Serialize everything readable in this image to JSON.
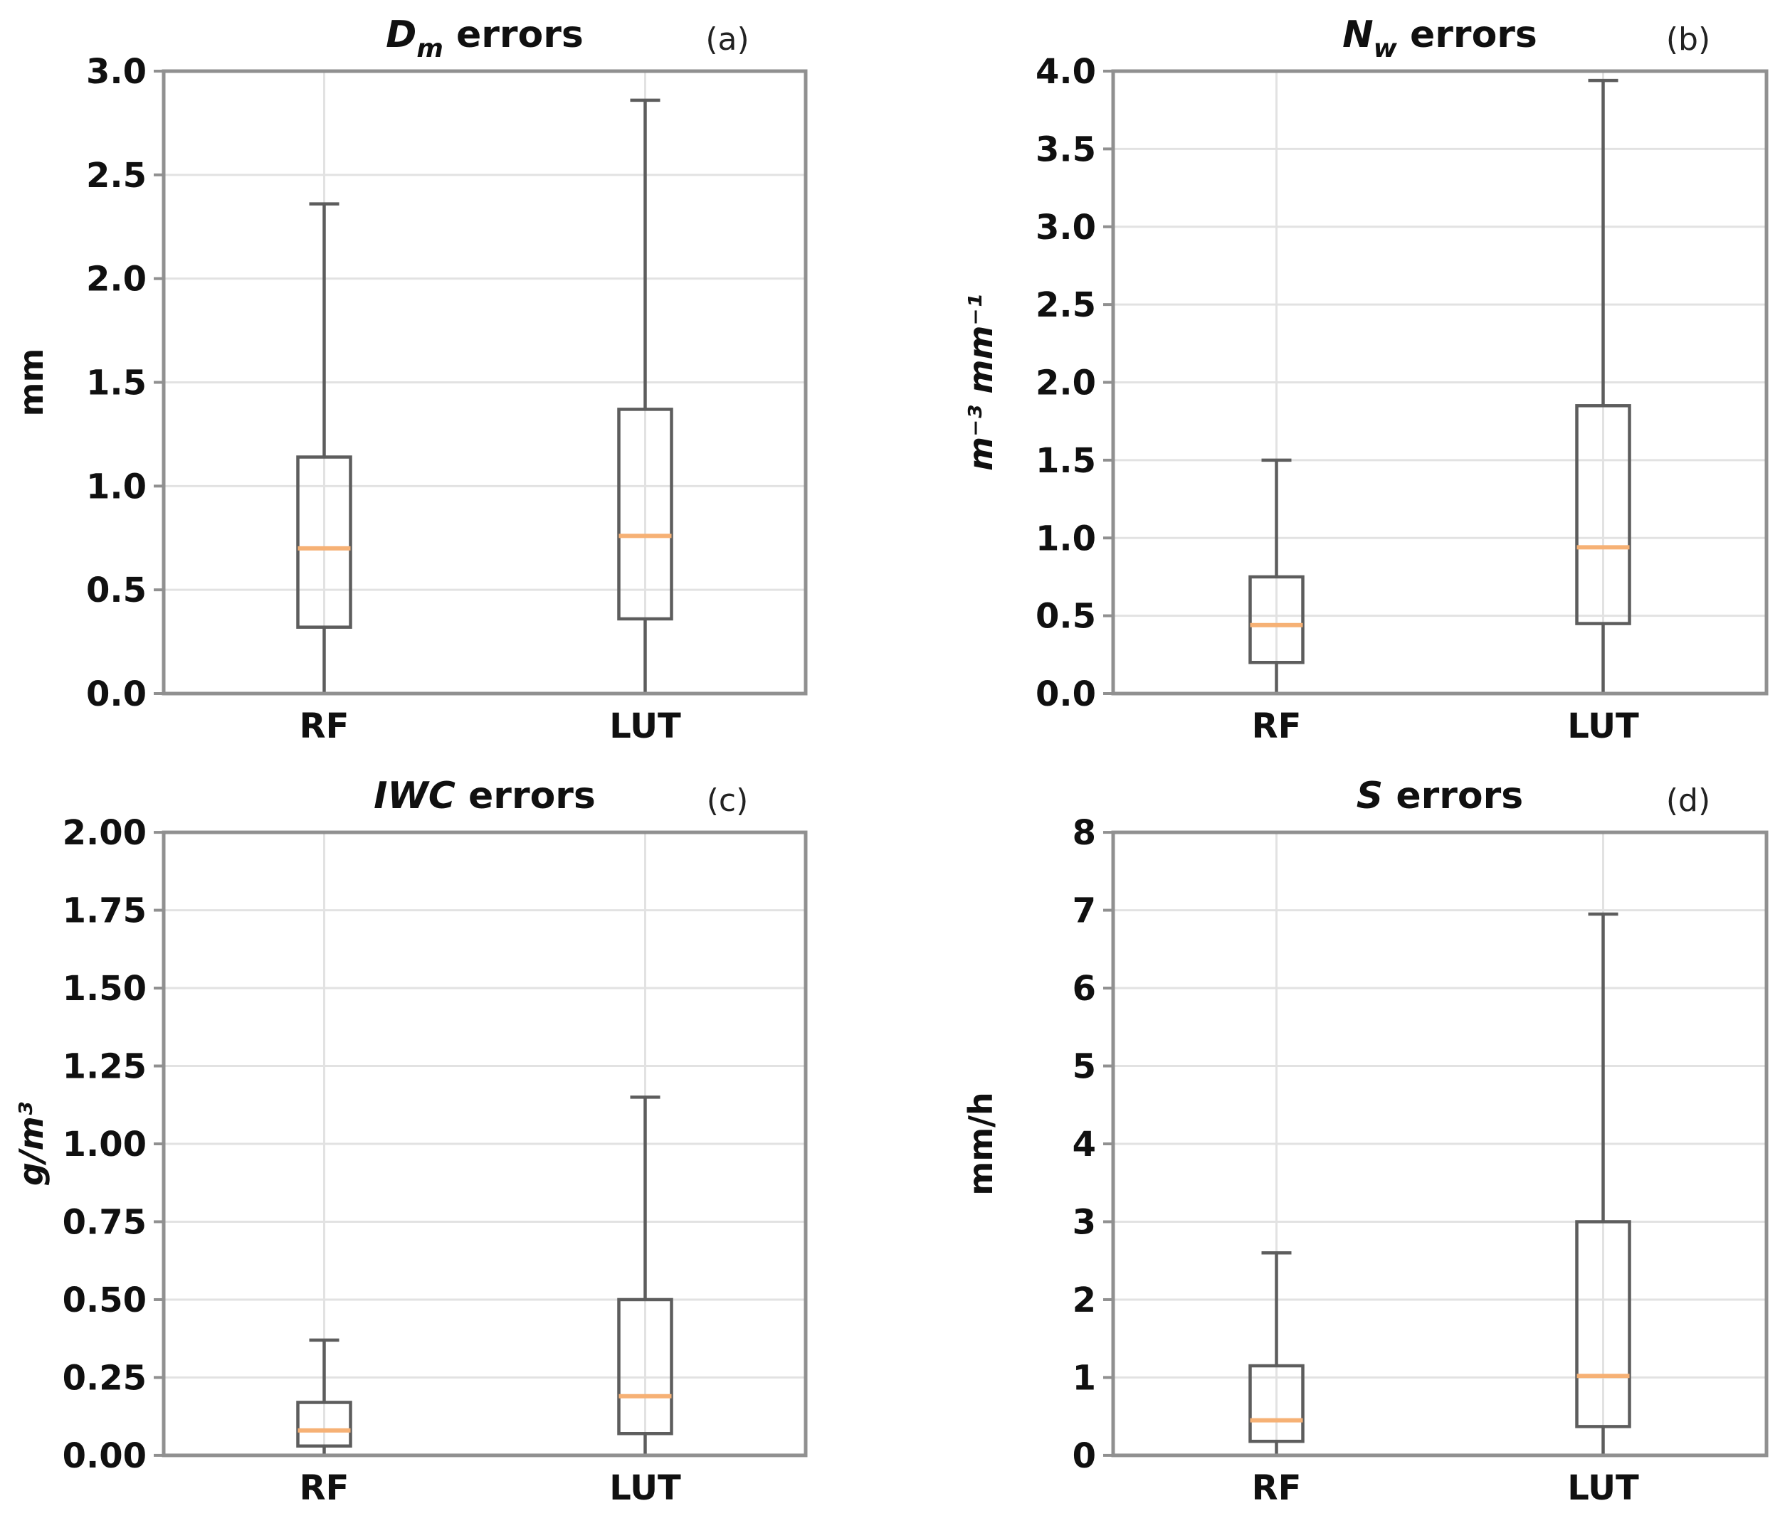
{
  "figure": {
    "background": "#ffffff",
    "colors": {
      "box_line": "#5d5d5d",
      "whisker_line": "#5d5d5d",
      "median_line": "#f6b175",
      "grid_line": "#e2e2e2",
      "spine": "#909090",
      "text": "#101010",
      "panel_label_text": "#222222"
    }
  },
  "chart_data": [
    {
      "type": "box",
      "panel_label": "(a)",
      "title": {
        "variable": "D",
        "subscript": "m",
        "rest": " errors"
      },
      "ylabel": "mm",
      "ylabel_italic": false,
      "ylim": [
        0.0,
        3.0
      ],
      "ytick_labels": [
        "0.0",
        "0.5",
        "1.0",
        "1.5",
        "2.0",
        "2.5",
        "3.0"
      ],
      "categories": [
        "RF",
        "LUT"
      ],
      "grid": true,
      "series": [
        {
          "name": "RF",
          "whislo": 0.0,
          "q1": 0.32,
          "med": 0.7,
          "q3": 1.14,
          "whishi": 2.36
        },
        {
          "name": "LUT",
          "whislo": 0.0,
          "q1": 0.36,
          "med": 0.76,
          "q3": 1.37,
          "whishi": 2.86
        }
      ]
    },
    {
      "type": "box",
      "panel_label": "(b)",
      "title": {
        "variable": "N",
        "subscript": "w",
        "rest": " errors"
      },
      "ylabel": "m⁻³ mm⁻¹",
      "ylabel_italic": true,
      "ylim": [
        0.0,
        4.0
      ],
      "ytick_labels": [
        "0.0",
        "0.5",
        "1.0",
        "1.5",
        "2.0",
        "2.5",
        "3.0",
        "3.5",
        "4.0"
      ],
      "categories": [
        "RF",
        "LUT"
      ],
      "grid": true,
      "series": [
        {
          "name": "RF",
          "whislo": 0.0,
          "q1": 0.2,
          "med": 0.44,
          "q3": 0.75,
          "whishi": 1.5
        },
        {
          "name": "LUT",
          "whislo": 0.0,
          "q1": 0.45,
          "med": 0.94,
          "q3": 1.85,
          "whishi": 3.94
        }
      ]
    },
    {
      "type": "box",
      "panel_label": "(c)",
      "title": {
        "variable": "IWC",
        "subscript": "",
        "rest": " errors"
      },
      "ylabel": "g/m³",
      "ylabel_italic": true,
      "ylim": [
        0.0,
        2.0
      ],
      "ytick_labels": [
        "0.00",
        "0.25",
        "0.50",
        "0.75",
        "1.00",
        "1.25",
        "1.50",
        "1.75",
        "2.00"
      ],
      "categories": [
        "RF",
        "LUT"
      ],
      "grid": true,
      "series": [
        {
          "name": "RF",
          "whislo": 0.0,
          "q1": 0.03,
          "med": 0.08,
          "q3": 0.17,
          "whishi": 0.37
        },
        {
          "name": "LUT",
          "whislo": 0.0,
          "q1": 0.07,
          "med": 0.19,
          "q3": 0.5,
          "whishi": 1.15
        }
      ]
    },
    {
      "type": "box",
      "panel_label": "(d)",
      "title": {
        "variable": "S",
        "subscript": "",
        "rest": " errors"
      },
      "ylabel": "mm/h",
      "ylabel_italic": false,
      "ylim": [
        0,
        8
      ],
      "ytick_labels": [
        "0",
        "1",
        "2",
        "3",
        "4",
        "5",
        "6",
        "7",
        "8"
      ],
      "categories": [
        "RF",
        "LUT"
      ],
      "grid": true,
      "series": [
        {
          "name": "RF",
          "whislo": 0.0,
          "q1": 0.18,
          "med": 0.45,
          "q3": 1.15,
          "whishi": 2.6
        },
        {
          "name": "LUT",
          "whislo": 0.0,
          "q1": 0.37,
          "med": 1.02,
          "q3": 3.0,
          "whishi": 6.95
        }
      ]
    }
  ]
}
